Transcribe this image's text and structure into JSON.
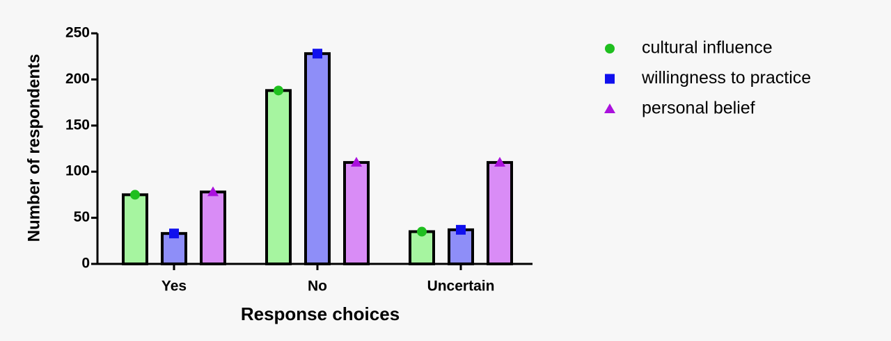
{
  "chart_data": {
    "type": "bar",
    "x_label": "Response choices",
    "y_label": "Number of respondents",
    "categories": [
      "Yes",
      "No",
      "Uncertain"
    ],
    "series": [
      {
        "name": "cultural influence",
        "color": "#a6f5a0",
        "marker_color": "#1fbf1f",
        "marker": "circle",
        "values": [
          75,
          188,
          35
        ]
      },
      {
        "name": "willingness to practice",
        "color": "#8e8ef8",
        "marker_color": "#1010ee",
        "marker": "square",
        "values": [
          33,
          228,
          37
        ]
      },
      {
        "name": "personal belief",
        "color": "#d98cf6",
        "marker_color": "#aa11dd",
        "marker": "triangle",
        "values": [
          78,
          110,
          110
        ]
      }
    ],
    "ylim": [
      0,
      250
    ],
    "yticks": [
      0,
      50,
      100,
      150,
      200,
      250
    ],
    "legend": "right"
  }
}
